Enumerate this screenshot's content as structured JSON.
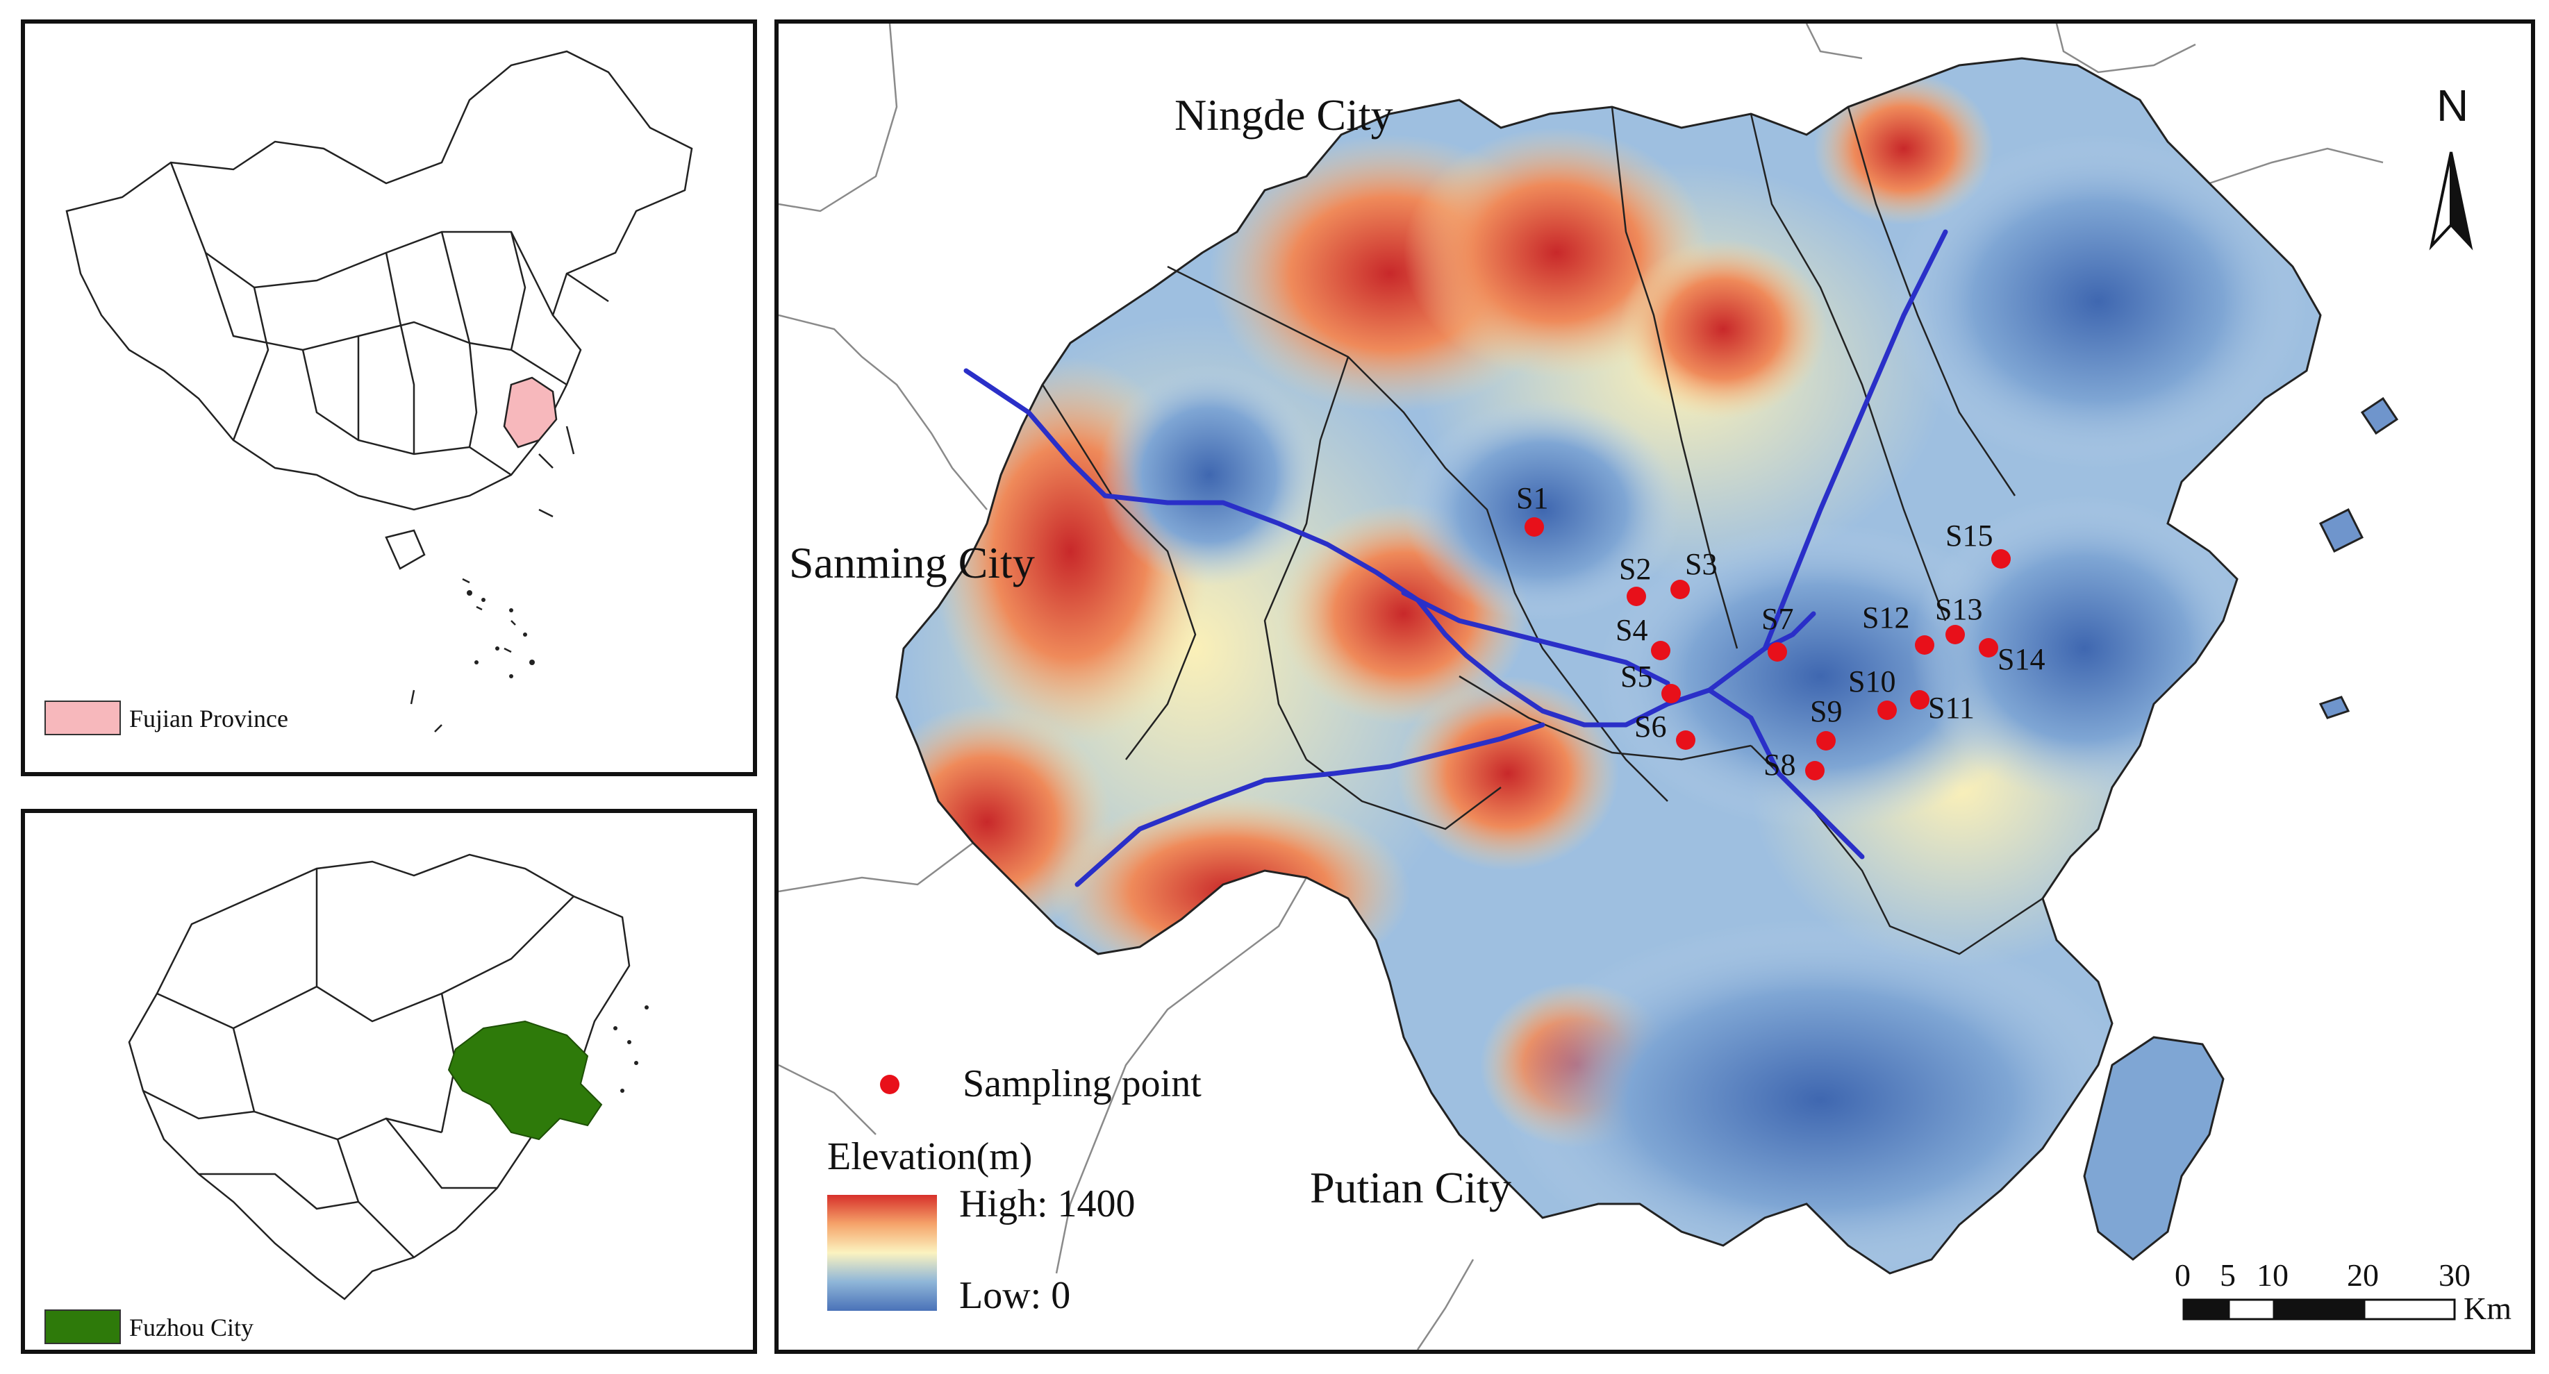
{
  "inset_china": {
    "legend_label": "Fujian Province",
    "legend_color": "#f7b8bc"
  },
  "inset_fujian": {
    "legend_label": "Fuzhou City",
    "legend_color": "#2e7a0a"
  },
  "main_map": {
    "neighbor_labels": {
      "north": "Ningde City",
      "west": "Sanming City",
      "south": "Putian City"
    },
    "sampling_points": [
      "S1",
      "S2",
      "S3",
      "S4",
      "S5",
      "S6",
      "S7",
      "S8",
      "S9",
      "S10",
      "S11",
      "S12",
      "S13",
      "S14",
      "S15"
    ],
    "sampling_legend": "Sampling point",
    "sampling_color": "#e8101a",
    "elevation_legend": {
      "title": "Elevation(m)",
      "high": "High: 1400",
      "low": "Low: 0",
      "colors": [
        "#d7302a",
        "#f5a36a",
        "#fbf3c0",
        "#8fb6d8",
        "#4a72b8"
      ]
    },
    "north_arrow": "N",
    "scale_bar": {
      "ticks": [
        "0",
        "5",
        "10",
        "20",
        "30"
      ],
      "unit": "Km"
    }
  }
}
